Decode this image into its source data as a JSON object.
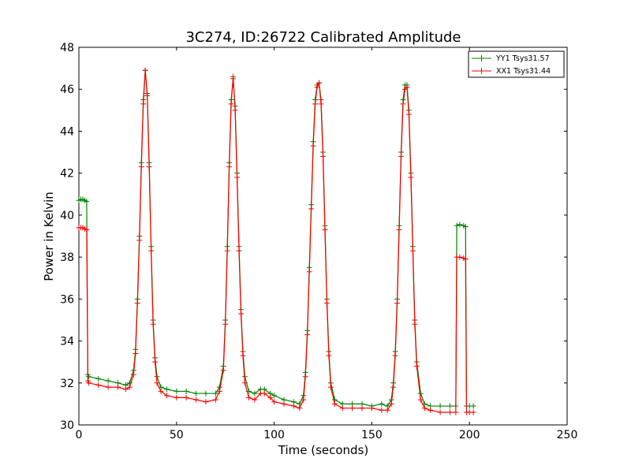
{
  "chart_data": {
    "type": "line",
    "title": "3C274, ID:26722 Calibrated Amplitude",
    "xlabel": "Time (seconds)",
    "ylabel": "Power in Kelvin",
    "xlim": [
      0,
      250
    ],
    "ylim": [
      30,
      48
    ],
    "xticks": [
      0,
      50,
      100,
      150,
      200,
      250
    ],
    "yticks": [
      30,
      32,
      34,
      36,
      38,
      40,
      42,
      44,
      46,
      48
    ],
    "grid": false,
    "legend": "top-right",
    "series": [
      {
        "name": "YY1 Tsys31.57",
        "color": "#008000",
        "marker": "+",
        "points": [
          [
            0,
            40.7
          ],
          [
            1,
            40.75
          ],
          [
            2,
            40.75
          ],
          [
            3,
            40.7
          ],
          [
            4,
            40.65
          ],
          [
            4.6,
            32.4
          ],
          [
            5,
            32.3
          ],
          [
            10,
            32.2
          ],
          [
            15,
            32.1
          ],
          [
            20,
            32.0
          ],
          [
            24,
            31.9
          ],
          [
            26,
            32.0
          ],
          [
            28,
            32.6
          ],
          [
            29,
            33.6
          ],
          [
            30,
            36.0
          ],
          [
            31,
            39.0
          ],
          [
            32,
            42.5
          ],
          [
            33,
            45.5
          ],
          [
            34,
            46.9
          ],
          [
            35,
            45.8
          ],
          [
            36,
            42.5
          ],
          [
            37,
            38.5
          ],
          [
            38,
            35.0
          ],
          [
            39,
            33.2
          ],
          [
            40,
            32.3
          ],
          [
            42,
            31.8
          ],
          [
            45,
            31.7
          ],
          [
            50,
            31.6
          ],
          [
            55,
            31.6
          ],
          [
            60,
            31.5
          ],
          [
            65,
            31.5
          ],
          [
            70,
            31.5
          ],
          [
            72,
            31.8
          ],
          [
            74,
            32.8
          ],
          [
            75,
            35.0
          ],
          [
            76,
            38.5
          ],
          [
            77,
            42.5
          ],
          [
            78,
            45.5
          ],
          [
            79,
            46.5
          ],
          [
            80,
            45.2
          ],
          [
            81,
            42.0
          ],
          [
            82,
            38.5
          ],
          [
            83,
            35.5
          ],
          [
            84,
            33.5
          ],
          [
            85,
            32.3
          ],
          [
            87,
            31.6
          ],
          [
            90,
            31.5
          ],
          [
            93,
            31.7
          ],
          [
            95,
            31.7
          ],
          [
            98,
            31.5
          ],
          [
            100,
            31.4
          ],
          [
            105,
            31.2
          ],
          [
            110,
            31.1
          ],
          [
            113,
            31.0
          ],
          [
            115,
            31.4
          ],
          [
            116,
            32.5
          ],
          [
            117,
            34.5
          ],
          [
            118,
            37.5
          ],
          [
            119,
            40.5
          ],
          [
            120,
            43.5
          ],
          [
            121,
            45.5
          ],
          [
            122,
            46.2
          ],
          [
            123,
            46.3
          ],
          [
            124,
            45.5
          ],
          [
            125,
            43.0
          ],
          [
            126,
            39.5
          ],
          [
            127,
            36.0
          ],
          [
            128,
            33.5
          ],
          [
            129,
            32.0
          ],
          [
            131,
            31.2
          ],
          [
            135,
            31.0
          ],
          [
            140,
            31.0
          ],
          [
            145,
            31.0
          ],
          [
            150,
            30.9
          ],
          [
            155,
            31.0
          ],
          [
            158,
            30.9
          ],
          [
            160,
            31.2
          ],
          [
            161,
            32.0
          ],
          [
            162,
            33.5
          ],
          [
            163,
            36.0
          ],
          [
            164,
            39.5
          ],
          [
            165,
            43.0
          ],
          [
            166,
            45.5
          ],
          [
            167,
            46.2
          ],
          [
            168,
            46.2
          ],
          [
            169,
            45.0
          ],
          [
            170,
            42.0
          ],
          [
            171,
            38.5
          ],
          [
            172,
            35.0
          ],
          [
            173,
            33.0
          ],
          [
            175,
            31.5
          ],
          [
            177,
            31.0
          ],
          [
            180,
            30.9
          ],
          [
            185,
            30.9
          ],
          [
            190,
            30.9
          ],
          [
            193,
            30.9
          ],
          [
            193.5,
            39.5
          ],
          [
            195,
            39.55
          ],
          [
            197,
            39.5
          ],
          [
            198,
            39.45
          ],
          [
            198.5,
            30.9
          ],
          [
            200,
            30.9
          ],
          [
            202,
            30.9
          ]
        ]
      },
      {
        "name": "XX1 Tsys31.44",
        "color": "#ff0000",
        "marker": "+",
        "points": [
          [
            0,
            39.4
          ],
          [
            1,
            39.4
          ],
          [
            2,
            39.4
          ],
          [
            3,
            39.35
          ],
          [
            4,
            39.3
          ],
          [
            4.6,
            32.1
          ],
          [
            5,
            32.0
          ],
          [
            10,
            31.9
          ],
          [
            15,
            31.8
          ],
          [
            20,
            31.8
          ],
          [
            24,
            31.7
          ],
          [
            26,
            31.8
          ],
          [
            28,
            32.4
          ],
          [
            29,
            33.4
          ],
          [
            30,
            35.8
          ],
          [
            31,
            38.8
          ],
          [
            32,
            42.3
          ],
          [
            33,
            45.3
          ],
          [
            34,
            46.9
          ],
          [
            35,
            45.7
          ],
          [
            36,
            42.3
          ],
          [
            37,
            38.3
          ],
          [
            38,
            34.8
          ],
          [
            39,
            33.0
          ],
          [
            40,
            32.0
          ],
          [
            42,
            31.6
          ],
          [
            45,
            31.4
          ],
          [
            50,
            31.3
          ],
          [
            55,
            31.3
          ],
          [
            60,
            31.2
          ],
          [
            65,
            31.1
          ],
          [
            70,
            31.2
          ],
          [
            72,
            31.6
          ],
          [
            74,
            32.6
          ],
          [
            75,
            34.8
          ],
          [
            76,
            38.3
          ],
          [
            77,
            42.3
          ],
          [
            78,
            45.3
          ],
          [
            79,
            46.6
          ],
          [
            80,
            45.0
          ],
          [
            81,
            41.8
          ],
          [
            82,
            38.3
          ],
          [
            83,
            35.3
          ],
          [
            84,
            33.3
          ],
          [
            85,
            32.0
          ],
          [
            87,
            31.3
          ],
          [
            90,
            31.2
          ],
          [
            93,
            31.5
          ],
          [
            95,
            31.5
          ],
          [
            98,
            31.3
          ],
          [
            100,
            31.1
          ],
          [
            105,
            31.0
          ],
          [
            110,
            30.9
          ],
          [
            113,
            30.8
          ],
          [
            115,
            31.2
          ],
          [
            116,
            32.3
          ],
          [
            117,
            34.3
          ],
          [
            118,
            37.3
          ],
          [
            119,
            40.3
          ],
          [
            120,
            43.3
          ],
          [
            121,
            45.3
          ],
          [
            122,
            46.1
          ],
          [
            123,
            46.3
          ],
          [
            124,
            45.3
          ],
          [
            125,
            42.8
          ],
          [
            126,
            39.3
          ],
          [
            127,
            35.8
          ],
          [
            128,
            33.3
          ],
          [
            129,
            31.8
          ],
          [
            131,
            31.0
          ],
          [
            135,
            30.8
          ],
          [
            140,
            30.8
          ],
          [
            145,
            30.8
          ],
          [
            150,
            30.8
          ],
          [
            155,
            30.7
          ],
          [
            158,
            30.7
          ],
          [
            160,
            31.0
          ],
          [
            161,
            31.8
          ],
          [
            162,
            33.3
          ],
          [
            163,
            35.8
          ],
          [
            164,
            39.3
          ],
          [
            165,
            42.8
          ],
          [
            166,
            45.3
          ],
          [
            167,
            46.0
          ],
          [
            168,
            46.1
          ],
          [
            169,
            44.8
          ],
          [
            170,
            41.8
          ],
          [
            171,
            38.3
          ],
          [
            172,
            34.8
          ],
          [
            173,
            32.8
          ],
          [
            175,
            31.2
          ],
          [
            177,
            30.8
          ],
          [
            180,
            30.7
          ],
          [
            185,
            30.6
          ],
          [
            190,
            30.6
          ],
          [
            193,
            30.6
          ],
          [
            193.5,
            38.0
          ],
          [
            195,
            38.0
          ],
          [
            197,
            37.95
          ],
          [
            198,
            37.9
          ],
          [
            198.5,
            30.6
          ],
          [
            200,
            30.6
          ],
          [
            202,
            30.6
          ]
        ]
      }
    ]
  }
}
